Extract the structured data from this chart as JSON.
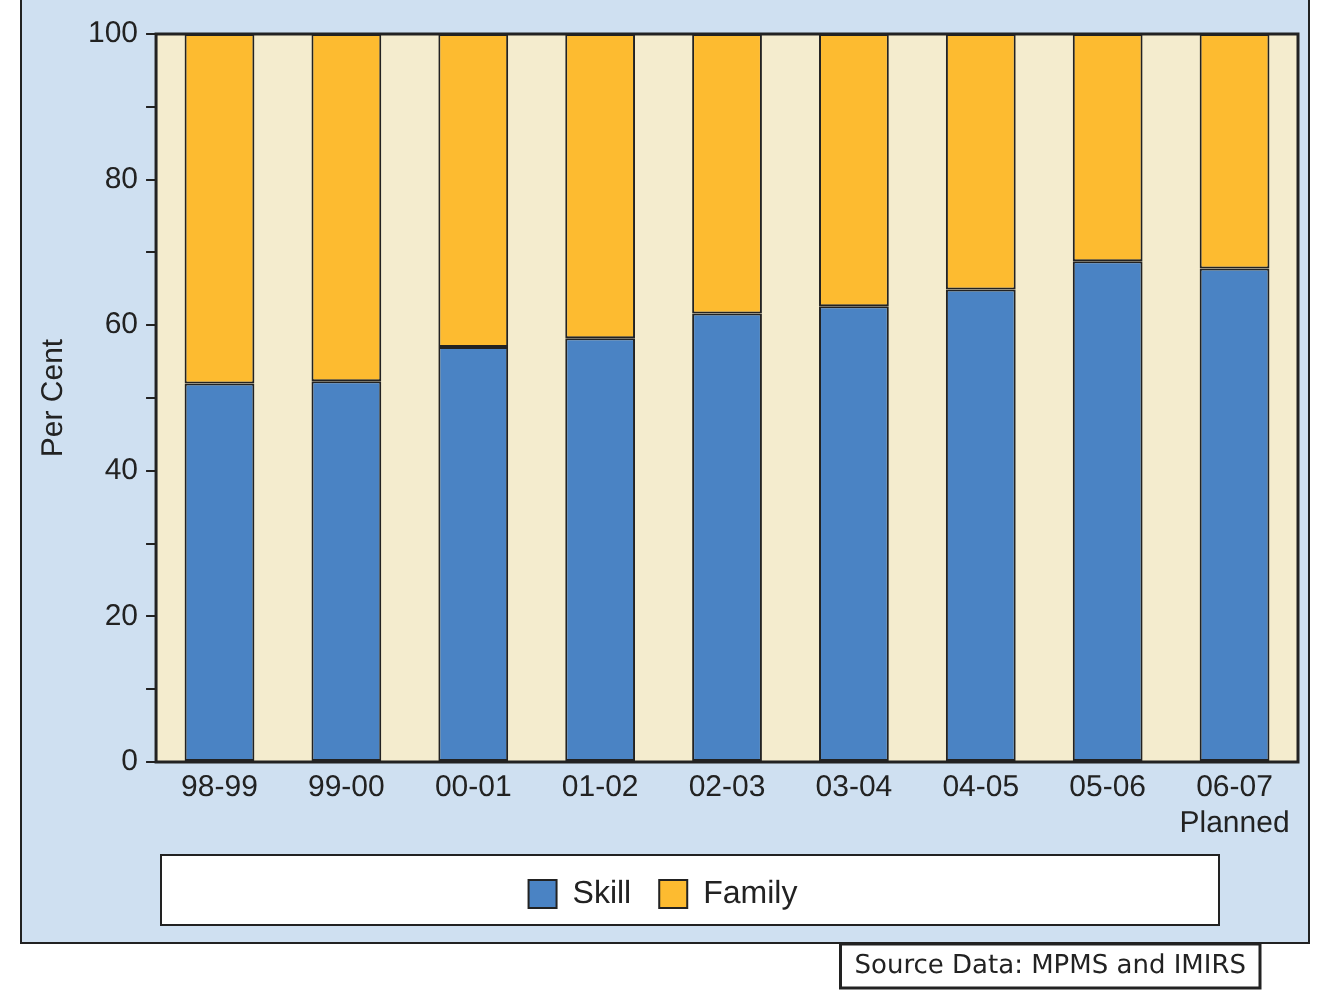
{
  "chart_data": {
    "type": "bar",
    "stacked": true,
    "ylabel": "Per Cent",
    "categories": [
      "98-99",
      "99-00",
      "00-01",
      "01-02",
      "02-03",
      "03-04",
      "04-05",
      "05-06",
      "06-07\nPlanned"
    ],
    "series": [
      {
        "name": "Skill",
        "color": "#4a83c4",
        "values": [
          52,
          52.3,
          57,
          58.2,
          61.6,
          62.6,
          64.9,
          68.8,
          67.8
        ]
      },
      {
        "name": "Family",
        "color": "#fdbb30",
        "values": [
          48,
          47.7,
          43,
          41.8,
          38.4,
          37.4,
          35.1,
          31.2,
          32.2
        ]
      }
    ],
    "ylim": [
      0,
      100
    ],
    "yticks": [
      0,
      {
        "value": 10,
        "label": null
      },
      20,
      {
        "value": 30,
        "label": null
      },
      40,
      {
        "value": 50,
        "label": null
      },
      60,
      {
        "value": 70,
        "label": null
      },
      80,
      {
        "value": 90,
        "label": null
      },
      100
    ],
    "grid": false,
    "legend": "bottom",
    "annotations": [
      "Source Data: MPMS and IMIRS"
    ]
  }
}
